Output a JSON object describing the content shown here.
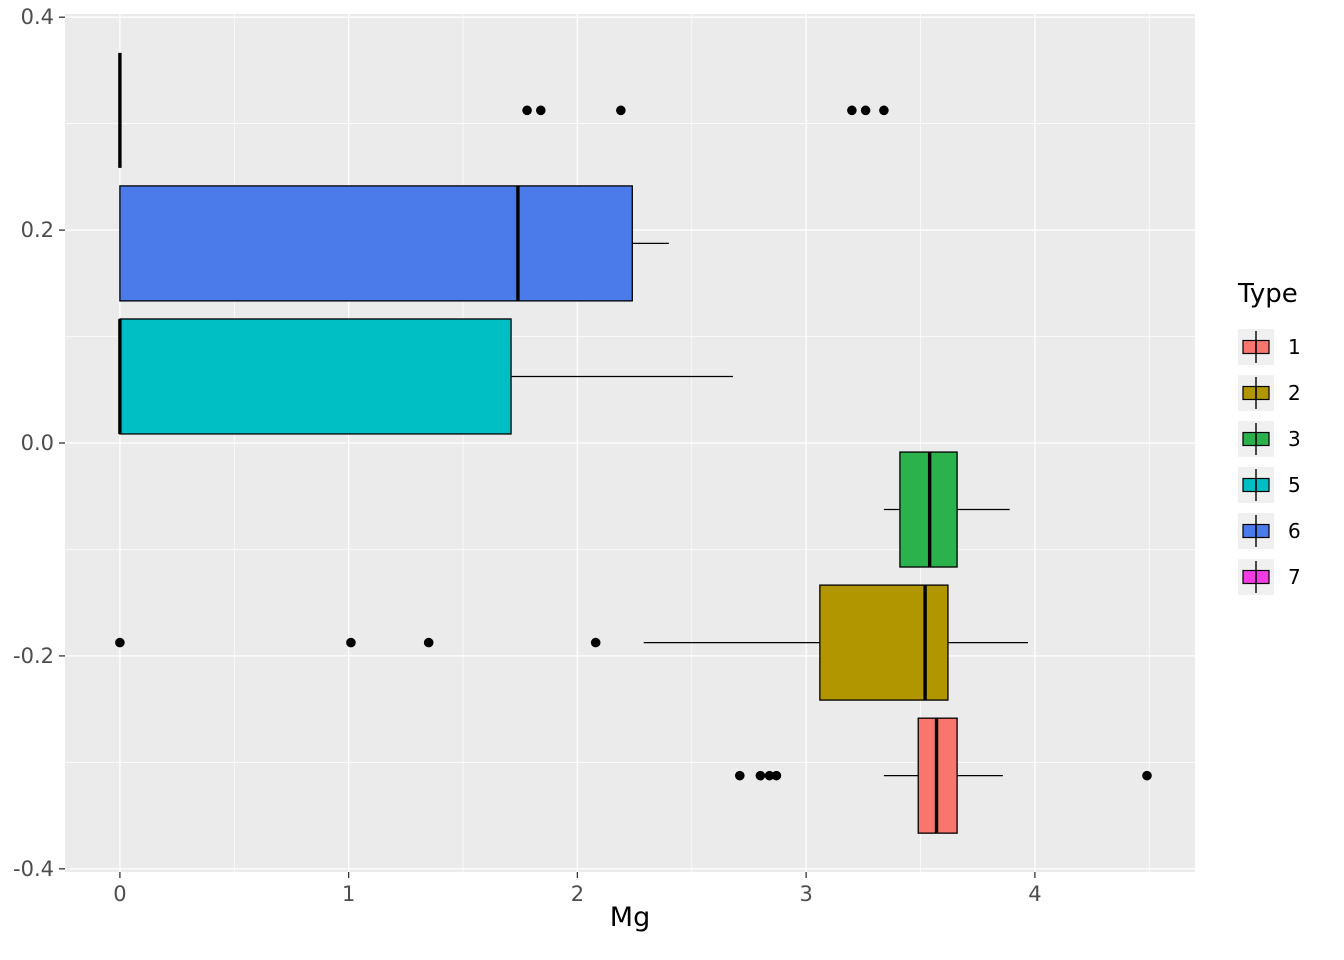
{
  "figure": {
    "background": "#FFFFFF"
  },
  "chart_data": {
    "type": "boxplot",
    "orientation": "horizontal",
    "title": "",
    "xlabel": "Mg",
    "ylabel": "",
    "xlim": [
      -0.24,
      4.7
    ],
    "ylim": [
      -0.403,
      0.403
    ],
    "panel_bg": "#EBEBEB",
    "grid_color": "#FFFFFF",
    "tick_color": "#333333",
    "tick_label_color": "#4D4D4D",
    "box_height": 0.108,
    "x_ticks": [
      {
        "value": 0,
        "label": "0"
      },
      {
        "value": 1,
        "label": "1"
      },
      {
        "value": 2,
        "label": "2"
      },
      {
        "value": 3,
        "label": "3"
      },
      {
        "value": 4,
        "label": "4"
      }
    ],
    "y_ticks": [
      {
        "value": 0.4,
        "label": "0.4"
      },
      {
        "value": 0.2,
        "label": "0.2"
      },
      {
        "value": 0.0,
        "label": "0.0"
      },
      {
        "value": -0.2,
        "label": "-0.2"
      },
      {
        "value": -0.4,
        "label": "-0.4"
      }
    ],
    "x_minor_ticks": [
      0.5,
      1.5,
      2.5,
      3.5,
      4.5
    ],
    "y_minor_ticks": [
      0.3,
      0.1,
      -0.1,
      -0.3
    ],
    "series": [
      {
        "name": "7",
        "color": "#F23BE3",
        "center": 0.3125,
        "whisker_low": 0,
        "q1": 0,
        "median": 0,
        "q3": 0,
        "whisker_high": 0,
        "outliers": [
          1.78,
          1.84,
          2.19,
          3.2,
          3.26,
          3.34
        ]
      },
      {
        "name": "6",
        "color": "#4B7BEA",
        "center": 0.1875,
        "whisker_low": 0,
        "q1": 0,
        "median": 1.74,
        "q3": 2.24,
        "whisker_high": 2.4,
        "outliers": []
      },
      {
        "name": "5",
        "color": "#00BFC4",
        "center": 0.0625,
        "whisker_low": 0,
        "q1": 0,
        "median": 0,
        "q3": 1.71,
        "whisker_high": 2.68,
        "outliers": []
      },
      {
        "name": "3",
        "color": "#2BB24C",
        "center": -0.0625,
        "whisker_low": 3.34,
        "q1": 3.41,
        "median": 3.54,
        "q3": 3.66,
        "whisker_high": 3.89,
        "outliers": []
      },
      {
        "name": "2",
        "color": "#B29600",
        "center": -0.1875,
        "whisker_low": 2.29,
        "q1": 3.06,
        "median": 3.52,
        "q3": 3.62,
        "whisker_high": 3.97,
        "outliers": [
          0,
          1.01,
          1.35,
          2.08
        ]
      },
      {
        "name": "1",
        "color": "#F8766D",
        "center": -0.3125,
        "whisker_low": 3.34,
        "q1": 3.49,
        "median": 3.57,
        "q3": 3.66,
        "whisker_high": 3.86,
        "outliers": [
          2.71,
          2.8,
          2.84,
          2.87,
          4.49
        ]
      }
    ]
  },
  "legend": {
    "title": "Type",
    "items": [
      {
        "label": "1",
        "color": "#F8766D"
      },
      {
        "label": "2",
        "color": "#B29600"
      },
      {
        "label": "3",
        "color": "#2BB24C"
      },
      {
        "label": "5",
        "color": "#00BFC4"
      },
      {
        "label": "6",
        "color": "#4B7BEA"
      },
      {
        "label": "7",
        "color": "#F23BE3"
      }
    ]
  }
}
